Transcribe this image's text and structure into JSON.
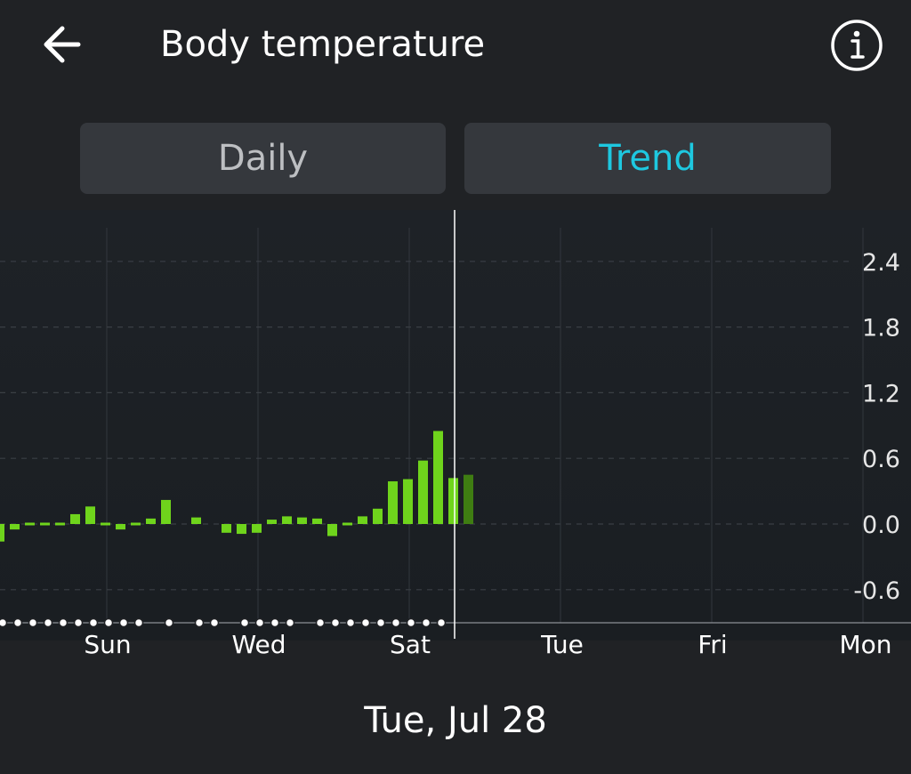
{
  "header": {
    "title": "Body temperature",
    "back_icon": "arrow-left-icon",
    "info_icon": "info-circle-icon"
  },
  "tabs": [
    {
      "label": "Daily",
      "selected": false
    },
    {
      "label": "Trend",
      "selected": true
    }
  ],
  "colors": {
    "background": "#202225",
    "tab_bg": "#35383d",
    "tab_inactive_text": "#bdbfc2",
    "tab_active_text": "#1ec8e0",
    "bar": "#6fd41c",
    "bar_selected": "#3f7d12"
  },
  "chart_data": {
    "type": "bar",
    "y_ticks": [
      "2.4",
      "1.8",
      "1.2",
      "0.6",
      "0.0",
      "-0.6"
    ],
    "y_tick_values": [
      2.4,
      1.8,
      1.2,
      0.6,
      0.0,
      -0.6
    ],
    "ylim": [
      -0.9,
      2.7
    ],
    "x_tick_labels": [
      "Sun",
      "Wed",
      "Sat",
      "Tue",
      "Fri",
      "Mon"
    ],
    "values": [
      -0.16,
      -0.05,
      -0.01,
      -0.01,
      0.01,
      0.09,
      0.16,
      0.0,
      -0.05,
      0.0,
      0.05,
      0.22,
      null,
      0.06,
      null,
      -0.08,
      -0.09,
      -0.08,
      0.04,
      0.07,
      0.06,
      0.05,
      -0.11,
      -0.02,
      0.07,
      0.14,
      0.39,
      0.41,
      0.58,
      0.85,
      0.42,
      0.45
    ],
    "selected_index": 31,
    "data_present_dots": [
      true,
      true,
      true,
      true,
      true,
      true,
      true,
      true,
      true,
      true,
      false,
      true,
      false,
      true,
      true,
      false,
      true,
      true,
      true,
      true,
      false,
      true,
      true,
      true,
      true,
      true,
      true,
      true,
      true,
      true
    ],
    "grid": true,
    "selected_date": "Tue, Jul 28"
  }
}
